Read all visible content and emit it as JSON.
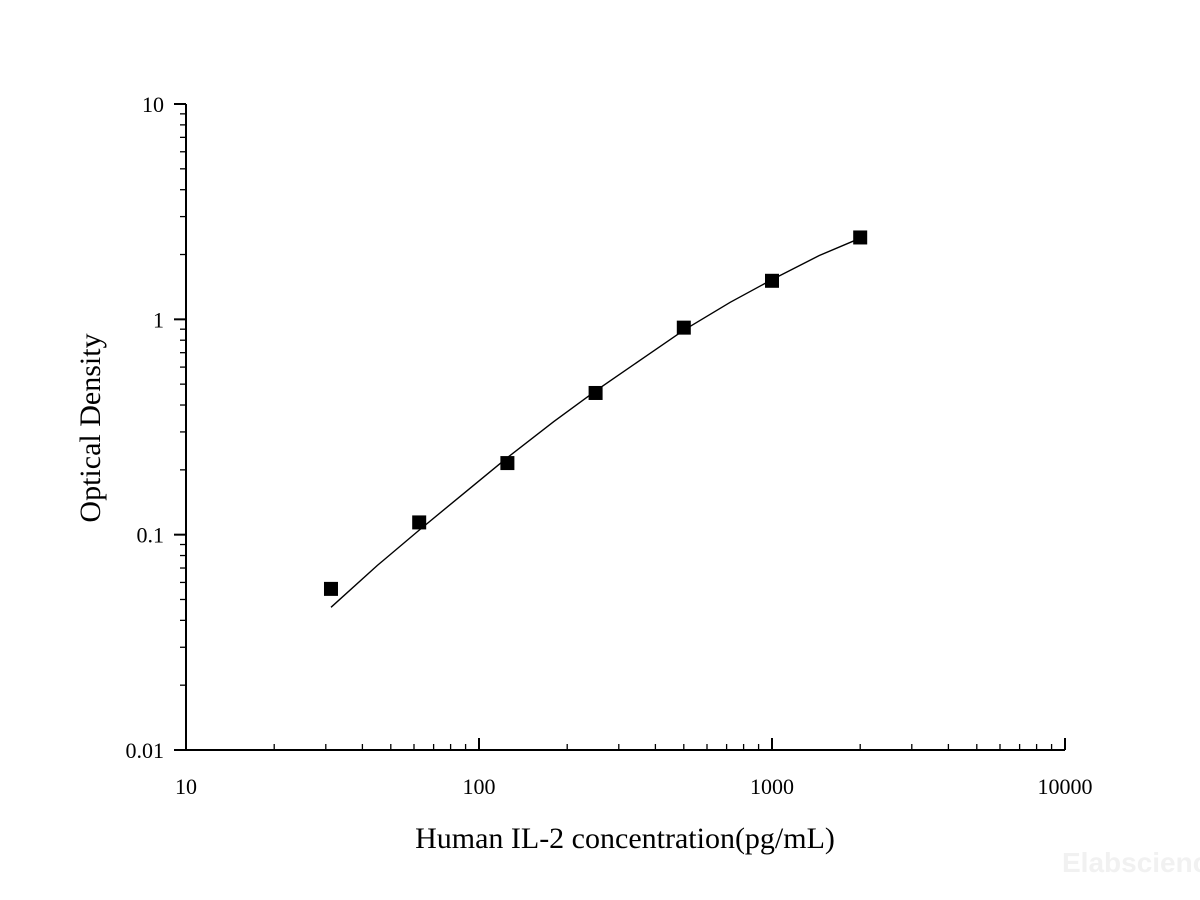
{
  "chart_data": {
    "type": "scatter",
    "xlabel": "Human IL-2 concentration(pg/mL)",
    "ylabel": "Optical Density",
    "x_scale": "log",
    "y_scale": "log",
    "xlim": [
      10,
      10000
    ],
    "ylim": [
      0.01,
      10
    ],
    "x_tick_labels": [
      "10",
      "100",
      "1000",
      "10000"
    ],
    "y_tick_labels": [
      "0.01",
      "0.1",
      "1",
      "10"
    ],
    "grid": false,
    "series": [
      {
        "marker": "square",
        "color": "#000000",
        "x": [
          31.25,
          62.5,
          125,
          250,
          500,
          1000,
          2000
        ],
        "y": [
          0.056,
          0.114,
          0.215,
          0.455,
          0.915,
          1.51,
          2.4
        ]
      }
    ],
    "fit_curve": {
      "color": "#000000",
      "x": [
        31.25,
        45,
        62.5,
        90,
        125,
        180,
        250,
        360,
        500,
        720,
        1000,
        1450,
        2000
      ],
      "y": [
        0.046,
        0.072,
        0.105,
        0.158,
        0.228,
        0.335,
        0.465,
        0.655,
        0.89,
        1.2,
        1.53,
        1.98,
        2.38
      ]
    },
    "watermark": "Elabscience"
  }
}
